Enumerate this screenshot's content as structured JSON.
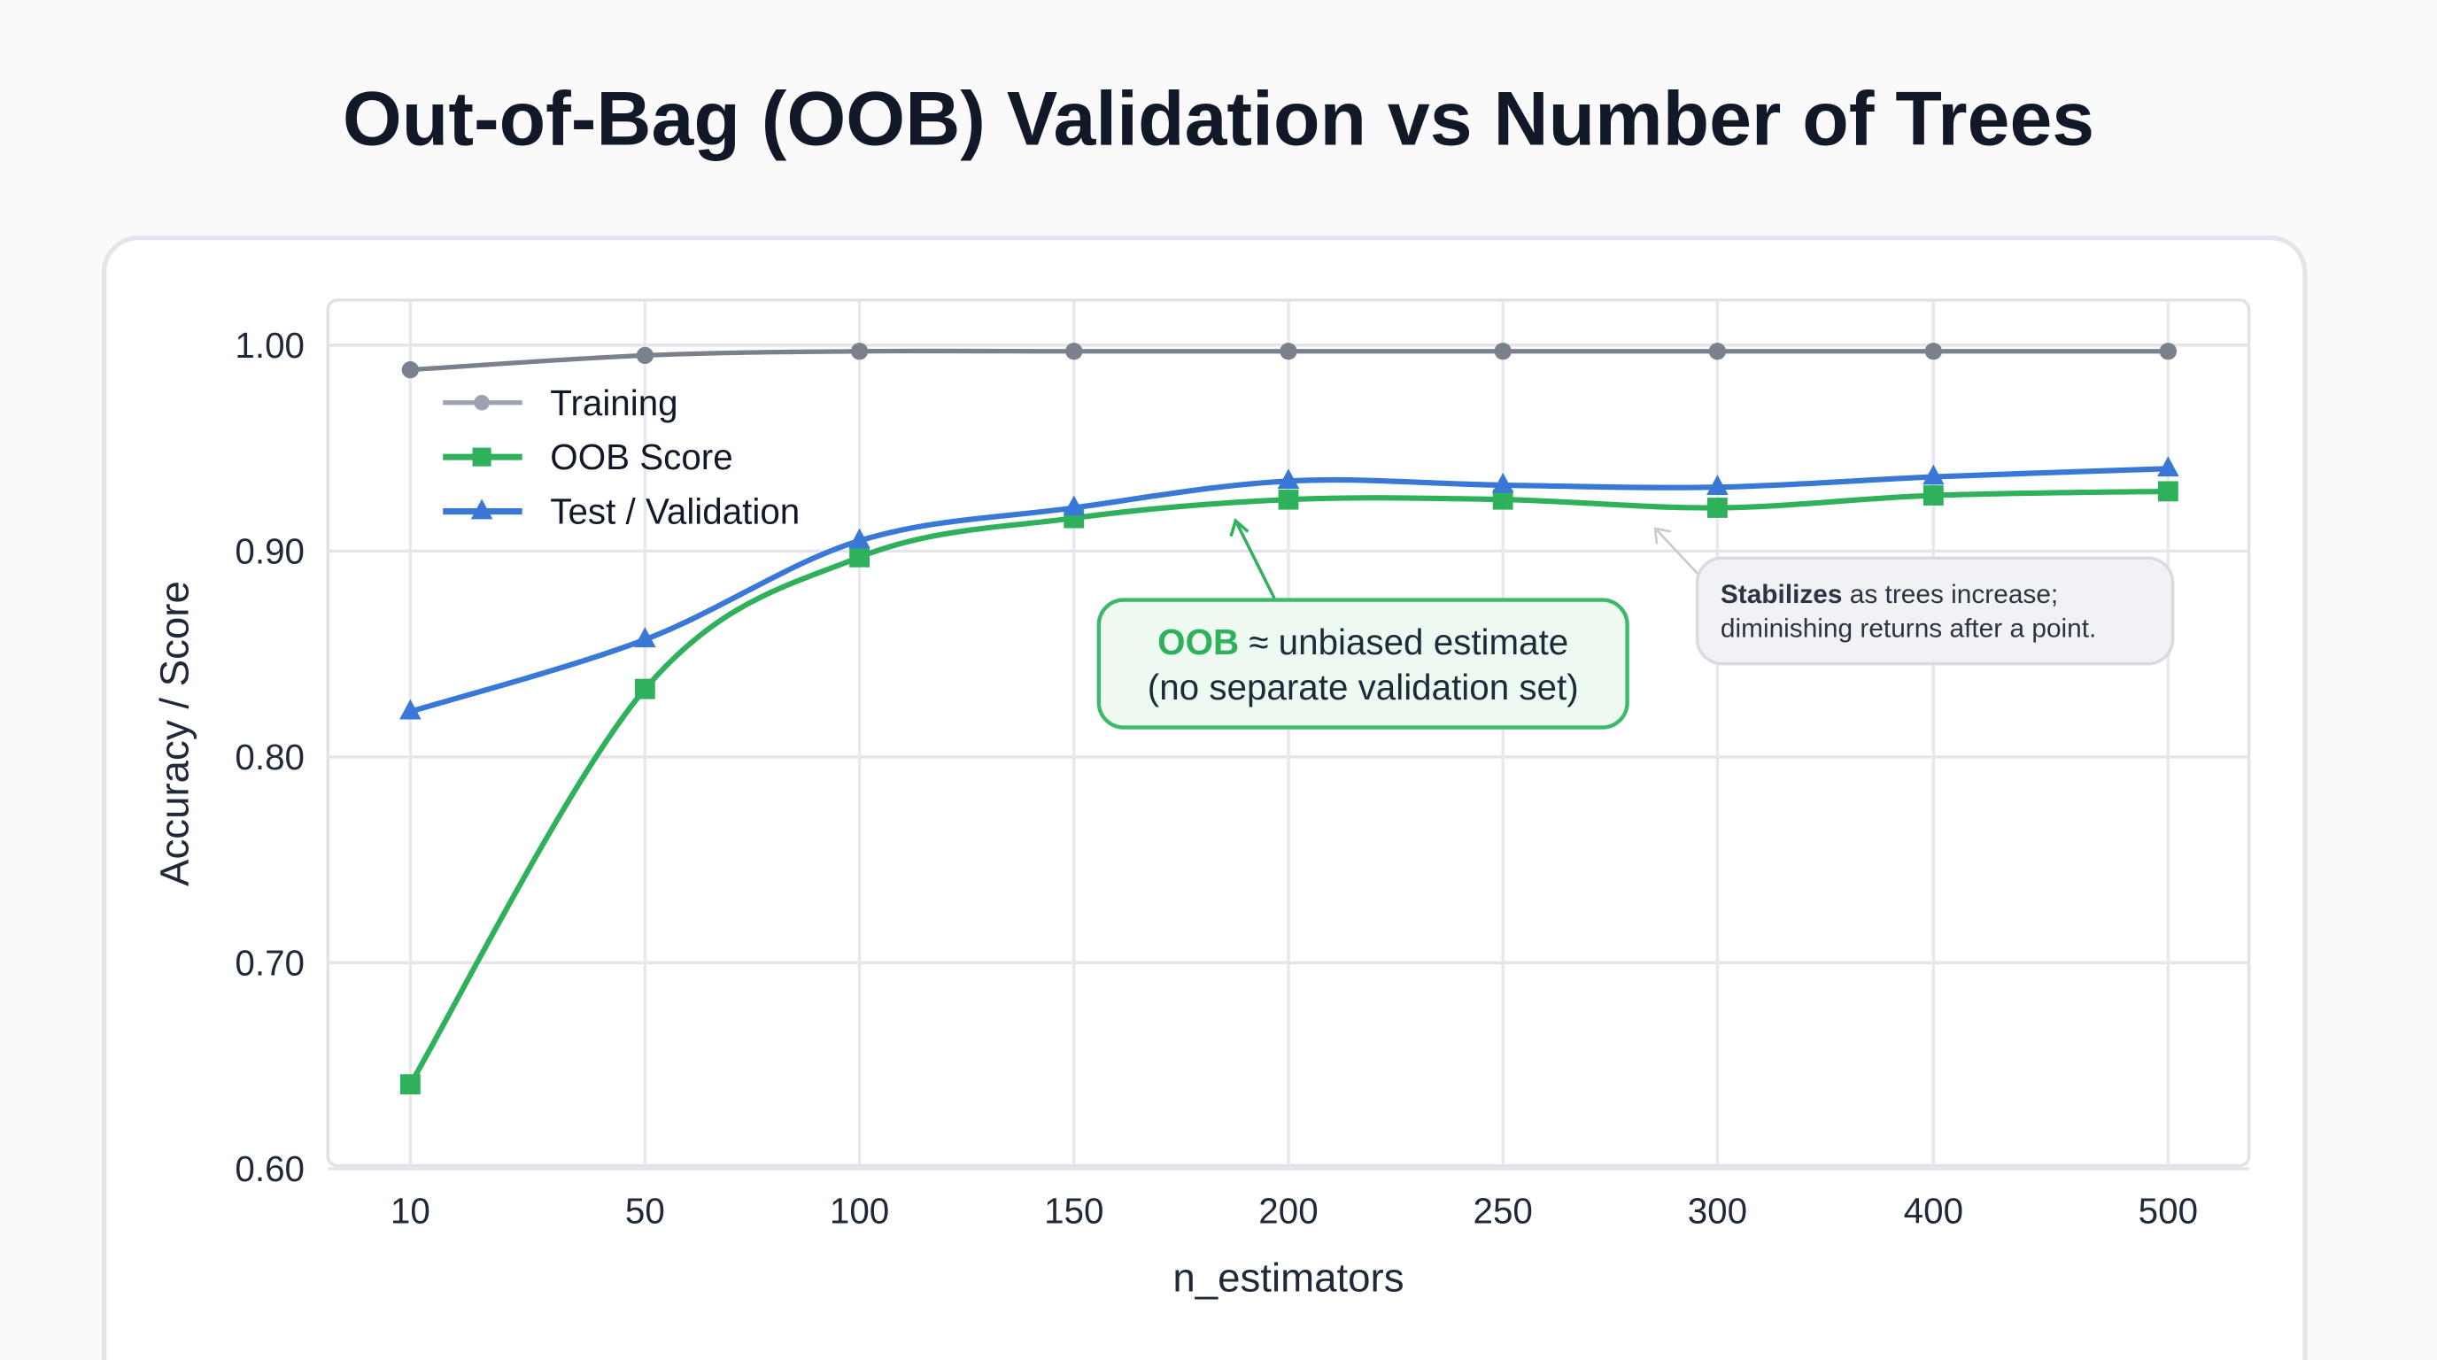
{
  "chart_data": {
    "type": "line",
    "title": "Out-of-Bag (OOB) Validation vs Number of Trees",
    "xlabel": "n_estimators",
    "ylabel": "Accuracy / Score",
    "categories": [
      "10",
      "50",
      "100",
      "150",
      "200",
      "250",
      "300",
      "400",
      "500"
    ],
    "ylim": [
      0.6,
      1.0
    ],
    "yticks": [
      "1.00",
      "0.90",
      "0.80",
      "0.70",
      "0.60"
    ],
    "ytick_values": [
      1.0,
      0.9,
      0.8,
      0.7,
      0.6
    ],
    "grid": true,
    "legend_position": "top-left",
    "series": [
      {
        "name": "Training",
        "color": "#6b7280",
        "marker": "circle",
        "values": [
          0.988,
          0.995,
          0.997,
          0.997,
          0.997,
          0.997,
          0.997,
          0.997,
          0.997
        ]
      },
      {
        "name": "OOB Score",
        "color": "#2fb15c",
        "marker": "square",
        "values": [
          0.641,
          0.833,
          0.897,
          0.916,
          0.925,
          0.925,
          0.921,
          0.927,
          0.929
        ]
      },
      {
        "name": "Test / Validation",
        "color": "#3a78d8",
        "marker": "triangle",
        "values": [
          0.822,
          0.857,
          0.905,
          0.921,
          0.934,
          0.932,
          0.931,
          0.936,
          0.94
        ]
      }
    ],
    "annotations": [
      {
        "bold": "OOB",
        "text": " ≈ unbiased estimate",
        "line2": "(no separate validation set)"
      },
      {
        "bold": "Stabilizes",
        "text": " as trees increase;",
        "line2": "diminishing returns after a point."
      }
    ]
  }
}
